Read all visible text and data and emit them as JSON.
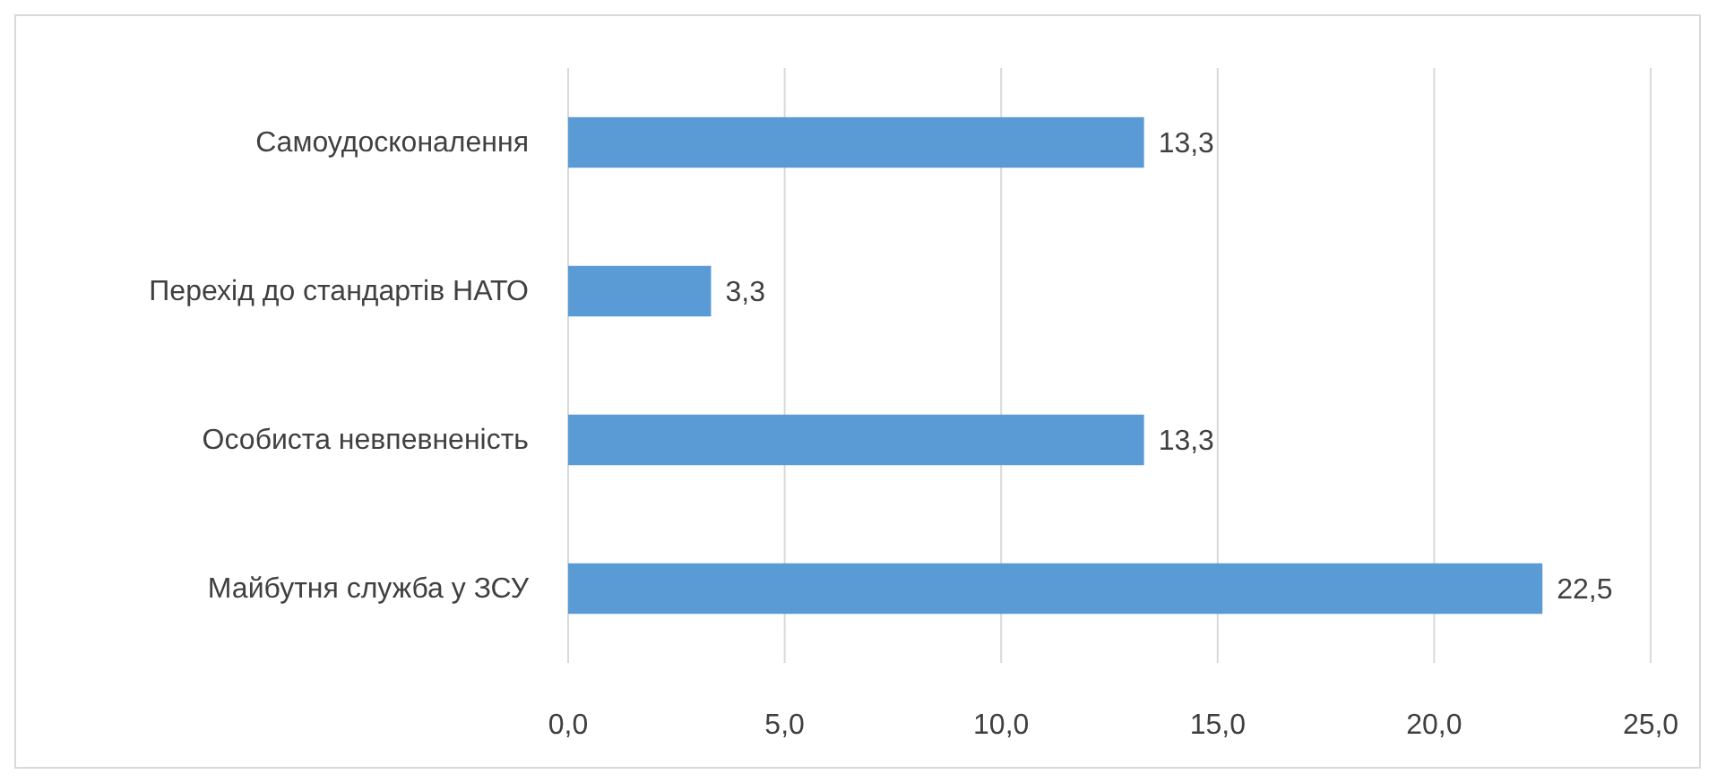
{
  "chart_data": {
    "type": "bar",
    "orientation": "horizontal",
    "categories": [
      "Самоудосконалення",
      "Перехід до стандартів НАТО",
      "Особиста невпевненість",
      "Майбутня служба у ЗСУ"
    ],
    "values": [
      13.3,
      3.3,
      13.3,
      22.5
    ],
    "value_labels": [
      "13,3",
      "3,3",
      "13,3",
      "22,5"
    ],
    "color": "#5b9bd5",
    "xlim": [
      0,
      25
    ],
    "xticks": [
      {
        "value": 0,
        "label": "0,0"
      },
      {
        "value": 5,
        "label": "5,0"
      },
      {
        "value": 10,
        "label": "10,0"
      },
      {
        "value": 15,
        "label": "15,0"
      },
      {
        "value": 20,
        "label": "20,0"
      },
      {
        "value": 25,
        "label": "25,0"
      }
    ],
    "grid": "x"
  }
}
